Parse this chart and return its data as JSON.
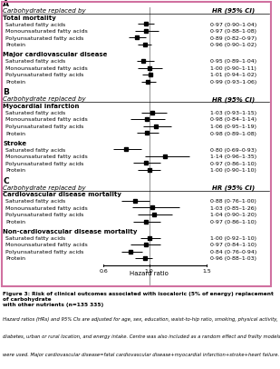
{
  "title": "Figure 3: Risk of clinical outcomes associated with isocaloric (5% of energy) replacement of carbohydrate\nwith other nutrients (n=135 335)",
  "caption_lines": [
    "Hazard ratios (HRs) and 95% CIs are adjusted for age, sex, education, waist-to-hip ratio, smoking, physical activity,",
    "diabetes, urban or rural location, and energy intake. Centre was also included as a random effect and frailty models",
    "were used. Major cardiovascular disease=fatal cardiovascular disease+myocardial infarction+stroke+heart failure."
  ],
  "sections": [
    {
      "label": "A",
      "header": "Carbohydrate replaced by",
      "groups": [
        {
          "name": "Total mortality",
          "rows": [
            {
              "label": "Saturated fatty acids",
              "hr": 0.97,
              "lo": 0.9,
              "hi": 1.04,
              "text": "0·97 (0·90–1·04)"
            },
            {
              "label": "Monounsaturated fatty acids",
              "hr": 0.97,
              "lo": 0.88,
              "hi": 1.08,
              "text": "0·97 (0·88–1·08)"
            },
            {
              "label": "Polyunsaturated fatty acids",
              "hr": 0.89,
              "lo": 0.82,
              "hi": 0.97,
              "text": "0·89 (0·82–0·97)"
            },
            {
              "label": "Protein",
              "hr": 0.96,
              "lo": 0.9,
              "hi": 1.02,
              "text": "0·96 (0·90–1·02)"
            }
          ]
        },
        {
          "name": "Major cardiovascular disease",
          "rows": [
            {
              "label": "Saturated fatty acids",
              "hr": 0.95,
              "lo": 0.89,
              "hi": 1.04,
              "text": "0·95 (0·89–1·04)"
            },
            {
              "label": "Monounsaturated fatty acids",
              "hr": 1.0,
              "lo": 0.9,
              "hi": 1.11,
              "text": "1·00 (0·90–1·11)"
            },
            {
              "label": "Polyunsaturated fatty acids",
              "hr": 1.01,
              "lo": 0.94,
              "hi": 1.02,
              "text": "1·01 (0·94–1·02)"
            },
            {
              "label": "Protein",
              "hr": 0.99,
              "lo": 0.93,
              "hi": 1.06,
              "text": "0·99 (0·93–1·06)"
            }
          ]
        }
      ]
    },
    {
      "label": "B",
      "header": "Carbohydrate replaced by",
      "groups": [
        {
          "name": "Myocardial infarction",
          "rows": [
            {
              "label": "Saturated fatty acids",
              "hr": 1.03,
              "lo": 0.93,
              "hi": 1.15,
              "text": "1·03 (0·93–1·15)"
            },
            {
              "label": "Monounsaturated fatty acids",
              "hr": 0.98,
              "lo": 0.84,
              "hi": 1.14,
              "text": "0·98 (0·84–1·14)"
            },
            {
              "label": "Polyunsaturated fatty acids",
              "hr": 1.06,
              "lo": 0.95,
              "hi": 1.19,
              "text": "1·06 (0·95–1·19)"
            },
            {
              "label": "Protein",
              "hr": 0.98,
              "lo": 0.89,
              "hi": 1.08,
              "text": "0·98 (0·89–1·08)"
            }
          ]
        },
        {
          "name": "Stroke",
          "rows": [
            {
              "label": "Saturated fatty acids",
              "hr": 0.8,
              "lo": 0.69,
              "hi": 0.93,
              "text": "0·80 (0·69–0·93)"
            },
            {
              "label": "Monounsaturated fatty acids",
              "hr": 1.14,
              "lo": 0.96,
              "hi": 1.35,
              "text": "1·14 (0·96–1·35)"
            },
            {
              "label": "Polyunsaturated fatty acids",
              "hr": 0.97,
              "lo": 0.86,
              "hi": 1.1,
              "text": "0·97 (0·86–1·10)"
            },
            {
              "label": "Protein",
              "hr": 1.0,
              "lo": 0.9,
              "hi": 1.1,
              "text": "1·00 (0·90–1·10)"
            }
          ]
        }
      ]
    },
    {
      "label": "C",
      "header": "Carbohydrate replaced by",
      "groups": [
        {
          "name": "Cardiovascular disease mortality",
          "rows": [
            {
              "label": "Saturated fatty acids",
              "hr": 0.88,
              "lo": 0.76,
              "hi": 1.0,
              "text": "0·88 (0·76–1·00)"
            },
            {
              "label": "Monounsaturated fatty acids",
              "hr": 1.03,
              "lo": 0.85,
              "hi": 1.26,
              "text": "1·03 (0·85–1·26)"
            },
            {
              "label": "Polyunsaturated fatty acids",
              "hr": 1.04,
              "lo": 0.9,
              "hi": 1.2,
              "text": "1·04 (0·90–1·20)"
            },
            {
              "label": "Protein",
              "hr": 0.97,
              "lo": 0.86,
              "hi": 1.1,
              "text": "0·97 (0·86–1·10)"
            }
          ]
        },
        {
          "name": "Non-cardiovascular disease mortality",
          "rows": [
            {
              "label": "Saturated fatty acids",
              "hr": 1.0,
              "lo": 0.92,
              "hi": 1.1,
              "text": "1·00 (0·92–1·10)"
            },
            {
              "label": "Monounsaturated fatty acids",
              "hr": 0.97,
              "lo": 0.84,
              "hi": 1.1,
              "text": "0·97 (0·84–1·10)"
            },
            {
              "label": "Polyunsaturated fatty acids",
              "hr": 0.84,
              "lo": 0.76,
              "hi": 0.94,
              "text": "0·84 (0·76–0·94)"
            },
            {
              "label": "Protein",
              "hr": 0.96,
              "lo": 0.88,
              "hi": 1.03,
              "text": "0·96 (0·88–1·03)"
            }
          ]
        }
      ]
    }
  ],
  "xmin": 0.6,
  "xmax": 1.5,
  "xref": 1.0,
  "xticks": [
    0.6,
    1.0,
    1.5
  ],
  "xlabel": "Hazard ratio",
  "border_color": "#d070a0",
  "marker_color": "#000000",
  "line_color": "#000000",
  "bg_color": "#ffffff",
  "font_size_small": 4.5,
  "font_size_header": 5.0,
  "font_size_group": 5.0,
  "font_size_section": 6.5
}
